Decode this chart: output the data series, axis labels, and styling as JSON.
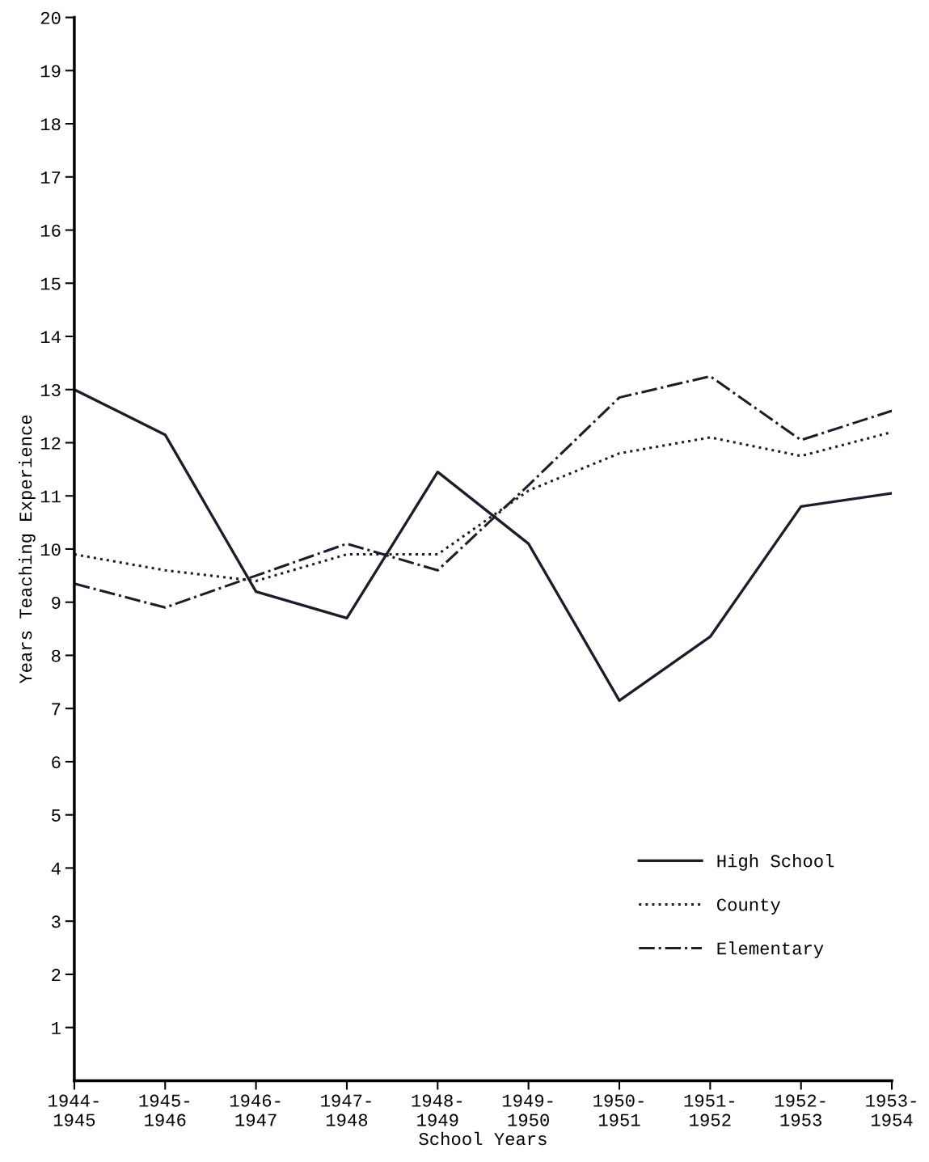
{
  "chart_data": {
    "type": "line",
    "xlabel": "School Years",
    "ylabel": "Years Teaching Experience",
    "categories": [
      "1944-\n1945",
      "1945-\n1946",
      "1946-\n1947",
      "1947-\n1948",
      "1948-\n1949",
      "1949-\n1950",
      "1950-\n1951",
      "1951-\n1952",
      "1952-\n1953",
      "1953-\n1954"
    ],
    "series": [
      {
        "name": "High School",
        "color": "#1c1c2a",
        "line_style": "solid",
        "values": [
          13.0,
          12.15,
          9.2,
          8.7,
          11.45,
          10.1,
          7.15,
          8.35,
          10.8,
          11.05
        ]
      },
      {
        "name": "County",
        "color": "#1c1c2a",
        "line_style": "dotted",
        "values": [
          9.9,
          9.6,
          9.4,
          9.9,
          9.9,
          11.1,
          11.8,
          12.1,
          11.75,
          12.2
        ]
      },
      {
        "name": "Elementary",
        "color": "#1c1c2a",
        "line_style": "dashdot",
        "values": [
          9.35,
          8.9,
          9.5,
          10.1,
          9.6,
          11.2,
          12.85,
          13.25,
          12.05,
          12.6
        ]
      }
    ],
    "ylim": [
      0,
      20
    ],
    "yticks": [
      1,
      2,
      3,
      4,
      5,
      6,
      7,
      8,
      9,
      10,
      11,
      12,
      13,
      14,
      15,
      16,
      17,
      18,
      19,
      20
    ],
    "grid": false,
    "legend": "lower right",
    "marker": "none"
  }
}
